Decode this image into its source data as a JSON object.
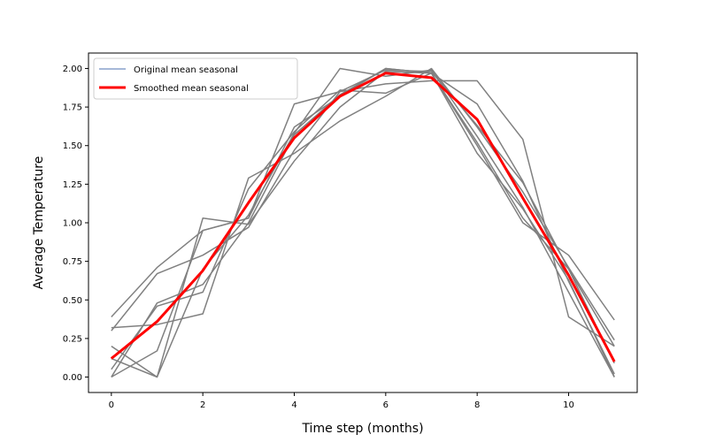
{
  "chart_data": {
    "type": "line",
    "xlabel": "Time step (months)",
    "ylabel": "Average Temperature",
    "xlim": [
      -0.5,
      11.5
    ],
    "ylim": [
      -0.1,
      2.1
    ],
    "xticks": [
      0,
      2,
      4,
      6,
      8,
      10
    ],
    "yticks": [
      0.0,
      0.25,
      0.5,
      0.75,
      1.0,
      1.25,
      1.5,
      1.75,
      2.0
    ],
    "ytick_labels": [
      "0.00",
      "0.25",
      "0.50",
      "0.75",
      "1.00",
      "1.25",
      "1.50",
      "1.75",
      "2.00"
    ],
    "grid": false,
    "legend_position": "upper-left",
    "legend": [
      {
        "label": "Original mean seasonal",
        "color": "#4c72b0"
      },
      {
        "label": "Smoothed mean seasonal",
        "color": "#ff0000"
      }
    ],
    "x": [
      0,
      1,
      2,
      3,
      4,
      5,
      6,
      7,
      8,
      9,
      10,
      11
    ],
    "background_series_color": "#808080",
    "background_series": [
      [
        0.39,
        0.71,
        0.95,
        1.03,
        1.77,
        1.85,
        1.9,
        1.92,
        1.92,
        1.54,
        0.39,
        0.2
      ],
      [
        0.32,
        0.34,
        0.41,
        1.29,
        1.45,
        1.66,
        1.82,
        2.0,
        1.62,
        1.2,
        0.71,
        0.24
      ],
      [
        0.0,
        0.48,
        0.6,
        1.0,
        1.57,
        1.83,
        2.0,
        1.97,
        1.5,
        1.0,
        0.79,
        0.37
      ],
      [
        0.2,
        0.0,
        0.7,
        1.05,
        1.58,
        2.0,
        1.95,
        1.99,
        1.56,
        1.1,
        0.55,
        0.0
      ],
      [
        0.12,
        0.0,
        1.03,
        0.99,
        1.4,
        1.75,
        1.98,
        1.97,
        1.52,
        1.03,
        0.7,
        0.09
      ],
      [
        0.0,
        0.17,
        0.95,
        1.03,
        1.62,
        1.82,
        2.0,
        1.97,
        1.45,
        1.09,
        0.63,
        0.0
      ],
      [
        0.3,
        0.67,
        0.79,
        0.97,
        1.47,
        1.85,
        1.99,
        1.98,
        1.63,
        1.26,
        0.7,
        0.2
      ],
      [
        0.05,
        0.46,
        0.55,
        1.22,
        1.59,
        1.86,
        1.84,
        1.97,
        1.77,
        1.27,
        0.62,
        0.02
      ]
    ],
    "series": [
      {
        "name": "Original mean seasonal",
        "color": "#4c72b0",
        "linewidth": 1,
        "values": [
          0.12,
          0.36,
          0.69,
          1.13,
          1.55,
          1.82,
          1.97,
          1.94,
          1.67,
          1.16,
          0.66,
          0.1
        ]
      },
      {
        "name": "Smoothed mean seasonal",
        "color": "#ff0000",
        "linewidth": 3,
        "values": [
          0.12,
          0.36,
          0.69,
          1.13,
          1.55,
          1.82,
          1.97,
          1.94,
          1.67,
          1.16,
          0.66,
          0.1
        ]
      }
    ]
  }
}
